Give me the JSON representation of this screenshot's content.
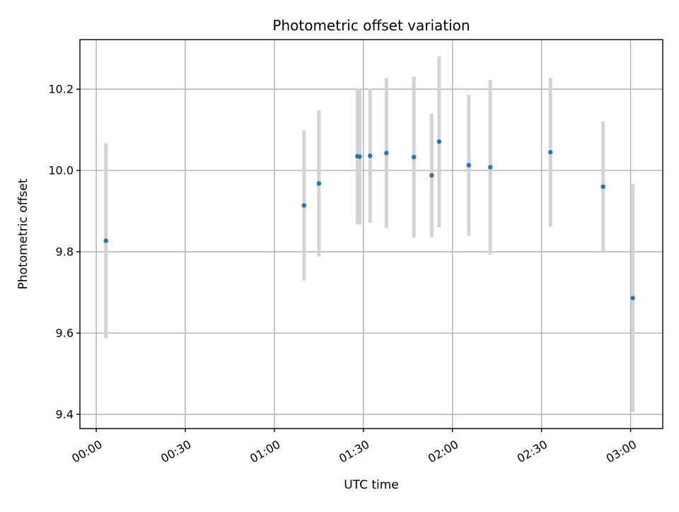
{
  "chart_data": {
    "type": "scatter",
    "title": "Photometric offset variation",
    "xlabel": "UTC time",
    "ylabel": "Photometric offset",
    "x_tick_labels": [
      "00:00",
      "00:30",
      "01:00",
      "01:30",
      "02:00",
      "02:30",
      "03:00"
    ],
    "x_ticks": [
      "00:00",
      "00:30",
      "01:00",
      "01:30",
      "02:00",
      "02:30",
      "03:00"
    ],
    "y_tick_labels": [
      "9.4",
      "9.6",
      "9.8",
      "10.0",
      "10.2"
    ],
    "y_ticks": [
      9.4,
      9.6,
      9.8,
      10.0,
      10.2
    ],
    "xlim": [
      "23:54:30",
      "03:10:50"
    ],
    "ylim": [
      9.365,
      10.322
    ],
    "grid": true,
    "marker_color": "#1f77b4",
    "errorbar_color": "#d3d3d3",
    "points": [
      {
        "x": "00:03:15",
        "y": 9.827,
        "err": 0.24
      },
      {
        "x": "01:10:00",
        "y": 9.914,
        "err": 0.185
      },
      {
        "x": "01:15:00",
        "y": 9.968,
        "err": 0.18
      },
      {
        "x": "01:28:00",
        "y": 10.035,
        "err": 0.167
      },
      {
        "x": "01:28:45",
        "y": 10.034,
        "err": 0.167
      },
      {
        "x": "01:32:15",
        "y": 10.036,
        "err": 0.165
      },
      {
        "x": "01:37:45",
        "y": 10.043,
        "err": 0.185
      },
      {
        "x": "01:47:00",
        "y": 10.033,
        "err": 0.198
      },
      {
        "x": "01:53:00",
        "y": 9.988,
        "err": 0.152
      },
      {
        "x": "01:55:30",
        "y": 10.071,
        "err": 0.21
      },
      {
        "x": "02:05:30",
        "y": 10.013,
        "err": 0.173
      },
      {
        "x": "02:12:45",
        "y": 10.008,
        "err": 0.215
      },
      {
        "x": "02:33:00",
        "y": 10.045,
        "err": 0.183
      },
      {
        "x": "02:50:45",
        "y": 9.96,
        "err": 0.16
      },
      {
        "x": "03:00:45",
        "y": 9.686,
        "err": 0.28
      }
    ]
  }
}
